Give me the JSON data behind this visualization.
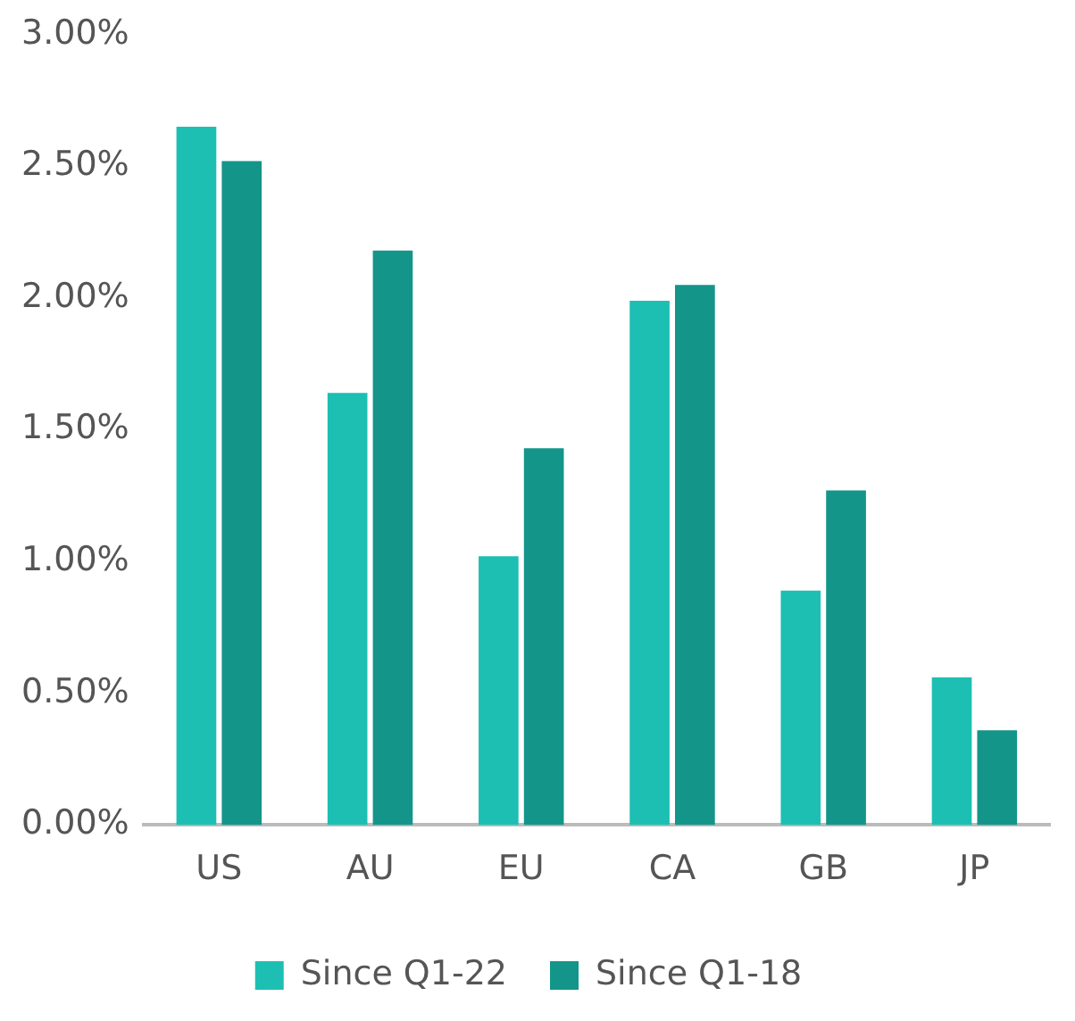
{
  "chart_data": {
    "type": "bar",
    "categories": [
      "US",
      "AU",
      "EU",
      "CA",
      "GB",
      "JP"
    ],
    "series": [
      {
        "name": "Since Q1-22",
        "color": "#1dbfb3",
        "values": [
          2.65,
          1.64,
          1.02,
          1.99,
          0.89,
          0.56
        ]
      },
      {
        "name": "Since Q1-18",
        "color": "#13958a",
        "values": [
          2.52,
          2.18,
          1.43,
          2.05,
          1.27,
          0.36
        ]
      }
    ],
    "ylim": [
      0,
      3
    ],
    "yticks": [
      {
        "value": 0,
        "label": "0.00%"
      },
      {
        "value": 0.5,
        "label": "0.50%"
      },
      {
        "value": 1,
        "label": "1.00%"
      },
      {
        "value": 1.5,
        "label": "1.50%"
      },
      {
        "value": 2,
        "label": "2.00%"
      },
      {
        "value": 2.5,
        "label": "2.50%"
      },
      {
        "value": 3,
        "label": "3.00%"
      }
    ],
    "grid": false,
    "legend": "bottom"
  }
}
